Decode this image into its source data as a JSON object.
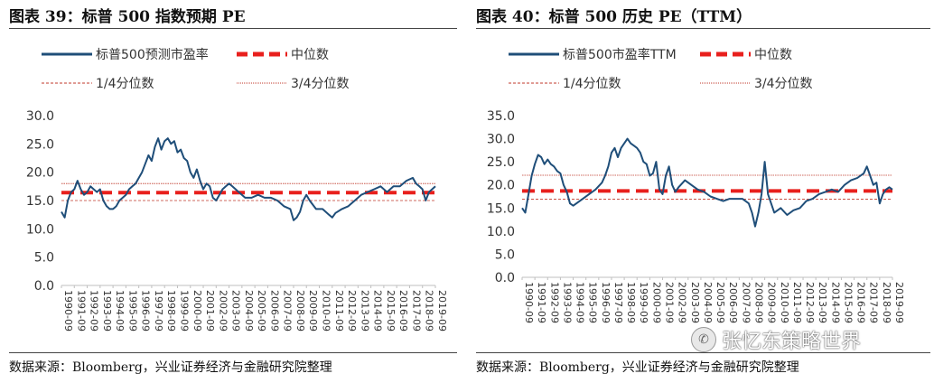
{
  "colors": {
    "series": "#1f4e79",
    "median": "#e8201d",
    "quartile": "#c0392b",
    "axis": "#bfbfbf",
    "text": "#333333"
  },
  "left": {
    "title": "图表 39：标普 500 指数预期 PE",
    "legend": {
      "series": "标普500预测市盈率",
      "median": "中位数",
      "q1": "1/4分位数",
      "q3": "3/4分位数"
    },
    "source": "数据来源：Bloomberg，兴业证券经济与金融研究院整理"
  },
  "right": {
    "title": "图表 40：标普 500 历史 PE（TTM）",
    "legend": {
      "series": "标普500市盈率TTM",
      "median": "中位数",
      "q1": "1/4分位数",
      "q3": "3/4分位数"
    },
    "source": "数据来源：Bloomberg，兴业证券经济与金融研究院整理"
  },
  "chart_data": [
    {
      "type": "line",
      "title": "图表 39：标普 500 指数预期 PE",
      "ylim": [
        0,
        30
      ],
      "yticks": [
        "0.0",
        "5.0",
        "10.0",
        "15.0",
        "20.0",
        "25.0",
        "30.0"
      ],
      "xlim": [
        1990.75,
        2019.75
      ],
      "xticks": [
        "1990-09",
        "1991-09",
        "1992-09",
        "1993-09",
        "1994-09",
        "1995-09",
        "1996-09",
        "1997-09",
        "1998-09",
        "1999-09",
        "2000-09",
        "2001-09",
        "2002-09",
        "2003-09",
        "2004-09",
        "2005-09",
        "2006-09",
        "2007-09",
        "2008-09",
        "2009-09",
        "2010-09",
        "2011-09",
        "2012-09",
        "2013-09",
        "2014-09",
        "2015-09",
        "2016-09",
        "2017-09",
        "2018-09",
        "2019-09"
      ],
      "series": [
        {
          "name": "标普500预测市盈率",
          "x": [
            1990.75,
            1991.0,
            1991.25,
            1991.5,
            1991.75,
            1992.0,
            1992.25,
            1992.5,
            1992.75,
            1993.0,
            1993.25,
            1993.5,
            1993.75,
            1994.0,
            1994.25,
            1994.5,
            1994.75,
            1995.0,
            1995.25,
            1995.5,
            1995.75,
            1996.0,
            1996.25,
            1996.5,
            1996.75,
            1997.0,
            1997.25,
            1997.5,
            1997.75,
            1998.0,
            1998.25,
            1998.5,
            1998.75,
            1999.0,
            1999.25,
            1999.5,
            1999.75,
            2000.0,
            2000.25,
            2000.5,
            2000.75,
            2001.0,
            2001.25,
            2001.5,
            2001.75,
            2002.0,
            2002.25,
            2002.5,
            2002.75,
            2003.0,
            2003.25,
            2003.5,
            2003.75,
            2004.0,
            2004.5,
            2005.0,
            2005.5,
            2006.0,
            2006.5,
            2007.0,
            2007.5,
            2008.0,
            2008.5,
            2008.75,
            2009.0,
            2009.25,
            2009.5,
            2009.75,
            2010.0,
            2010.5,
            2011.0,
            2011.5,
            2011.75,
            2012.0,
            2012.5,
            2013.0,
            2013.5,
            2014.0,
            2014.5,
            2015.0,
            2015.5,
            2016.0,
            2016.5,
            2017.0,
            2017.5,
            2018.0,
            2018.25,
            2018.5,
            2018.75,
            2019.0,
            2019.25,
            2019.5,
            2019.75
          ],
          "values": [
            13.0,
            12.0,
            15.0,
            16.5,
            17.0,
            18.5,
            17.0,
            16.0,
            16.5,
            17.5,
            17.0,
            16.5,
            17.0,
            15.0,
            14.0,
            13.5,
            13.5,
            14.0,
            15.0,
            15.5,
            16.0,
            17.0,
            17.5,
            18.0,
            19.0,
            20.0,
            21.5,
            23.0,
            22.0,
            24.5,
            26.0,
            24.0,
            25.5,
            26.0,
            25.0,
            25.5,
            23.5,
            24.0,
            22.5,
            22.0,
            20.0,
            19.0,
            20.5,
            18.5,
            17.0,
            18.0,
            17.5,
            15.5,
            15.0,
            16.0,
            17.0,
            17.5,
            18.0,
            17.5,
            16.5,
            15.5,
            15.5,
            16.0,
            15.5,
            15.5,
            15.0,
            14.0,
            13.5,
            11.5,
            12.0,
            13.0,
            15.0,
            16.0,
            15.0,
            13.5,
            13.5,
            12.5,
            12.0,
            12.8,
            13.5,
            14.0,
            15.0,
            16.0,
            16.5,
            17.0,
            17.5,
            16.5,
            17.5,
            17.5,
            18.5,
            19.0,
            18.0,
            17.5,
            17.0,
            15.0,
            16.5,
            17.0,
            17.5
          ]
        }
      ],
      "median": 16.4,
      "q1": 15.0,
      "q3": 18.0
    },
    {
      "type": "line",
      "title": "图表 40：标普 500 历史 PE（TTM）",
      "ylim": [
        0,
        35
      ],
      "yticks": [
        "0.0",
        "5.0",
        "10.0",
        "15.0",
        "20.0",
        "25.0",
        "30.0",
        "35.0"
      ],
      "xlim": [
        1990.75,
        2019.75
      ],
      "xticks": [
        "1990-09",
        "1991-09",
        "1992-09",
        "1993-09",
        "1994-09",
        "1995-09",
        "1996-09",
        "1997-09",
        "1998-09",
        "1999-09",
        "2000-09",
        "2001-09",
        "2002-09",
        "2003-09",
        "2004-09",
        "2005-09",
        "2006-09",
        "2007-09",
        "2008-09",
        "2009-09",
        "2010-09",
        "2011-09",
        "2012-09",
        "2013-09",
        "2014-09",
        "2015-09",
        "2016-09",
        "2017-09",
        "2018-09",
        "2019-09"
      ],
      "series": [
        {
          "name": "标普500市盈率TTM",
          "x": [
            1990.75,
            1991.0,
            1991.25,
            1991.5,
            1991.75,
            1992.0,
            1992.25,
            1992.5,
            1992.75,
            1993.0,
            1993.25,
            1993.5,
            1993.75,
            1994.0,
            1994.25,
            1994.5,
            1994.75,
            1995.0,
            1995.5,
            1996.0,
            1996.5,
            1997.0,
            1997.25,
            1997.5,
            1997.75,
            1998.0,
            1998.25,
            1998.5,
            1998.75,
            1999.0,
            1999.25,
            1999.5,
            1999.75,
            2000.0,
            2000.25,
            2000.5,
            2000.75,
            2001.0,
            2001.25,
            2001.5,
            2001.75,
            2002.0,
            2002.25,
            2002.5,
            2002.75,
            2003.0,
            2003.5,
            2004.0,
            2004.5,
            2005.0,
            2005.5,
            2006.0,
            2006.5,
            2007.0,
            2007.5,
            2008.0,
            2008.5,
            2008.75,
            2009.0,
            2009.25,
            2009.5,
            2009.75,
            2010.0,
            2010.25,
            2010.5,
            2011.0,
            2011.5,
            2012.0,
            2012.5,
            2013.0,
            2013.5,
            2014.0,
            2014.5,
            2015.0,
            2015.5,
            2016.0,
            2016.5,
            2017.0,
            2017.5,
            2017.75,
            2018.0,
            2018.25,
            2018.5,
            2018.75,
            2019.0,
            2019.25,
            2019.5,
            2019.75
          ],
          "values": [
            15.0,
            14.0,
            18.0,
            22.0,
            24.5,
            26.5,
            26.0,
            24.5,
            25.5,
            24.5,
            24.0,
            23.0,
            22.5,
            20.0,
            18.5,
            16.0,
            15.5,
            16.0,
            17.0,
            18.0,
            19.0,
            20.5,
            22.0,
            24.0,
            27.0,
            28.0,
            26.0,
            28.0,
            29.0,
            30.0,
            29.0,
            28.5,
            28.0,
            27.0,
            25.0,
            24.5,
            22.0,
            22.5,
            25.0,
            19.0,
            18.0,
            22.0,
            24.0,
            20.0,
            18.5,
            19.5,
            21.0,
            20.0,
            19.0,
            18.5,
            17.5,
            17.0,
            16.5,
            17.0,
            17.0,
            17.0,
            16.0,
            14.0,
            11.0,
            14.0,
            18.0,
            25.0,
            18.0,
            16.0,
            14.0,
            15.0,
            13.5,
            14.5,
            15.0,
            16.5,
            17.0,
            18.0,
            18.5,
            19.0,
            18.5,
            20.0,
            21.0,
            21.5,
            22.5,
            24.0,
            22.0,
            20.0,
            20.5,
            16.0,
            18.0,
            19.0,
            19.5,
            19.0
          ]
        }
      ],
      "median": 18.7,
      "q1": 16.9,
      "q3": 22.1
    }
  ],
  "watermark": "张忆东策略世界"
}
